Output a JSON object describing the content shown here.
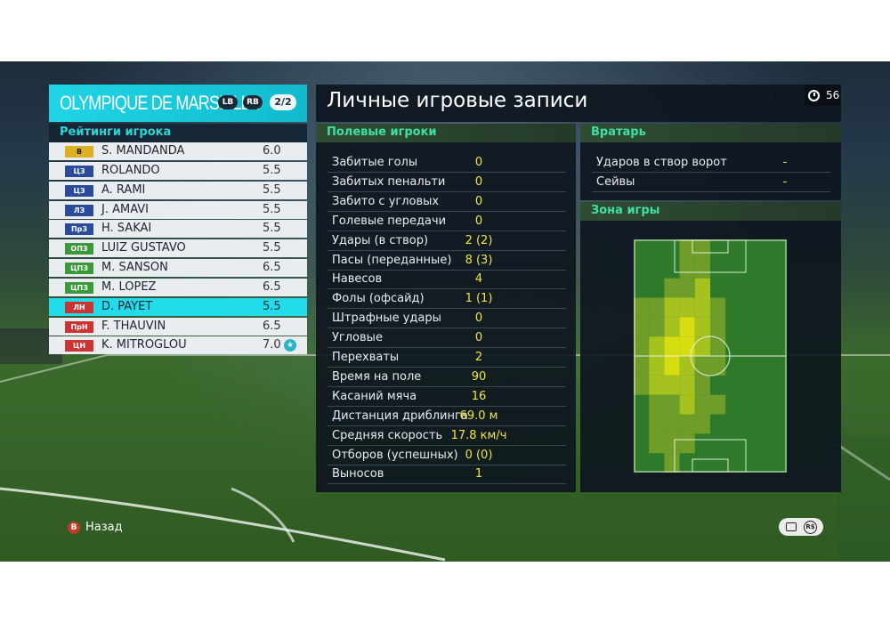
{
  "team": {
    "name": "OLYMPIQUE DE MARSEILLE",
    "lb": "LB",
    "rb": "RB",
    "page": "2/2"
  },
  "ratings_title": "Рейтинги игрока",
  "players": [
    {
      "pos": "В",
      "pos_color": "#ddb021",
      "pos_text": "#1c1c1c",
      "name": "S. MANDANDA",
      "rating": "6.0"
    },
    {
      "pos": "ЦЗ",
      "pos_color": "#2b4b9a",
      "name": "ROLANDO",
      "rating": "5.5"
    },
    {
      "pos": "ЦЗ",
      "pos_color": "#2b4b9a",
      "name": "A. RAMI",
      "rating": "5.5"
    },
    {
      "pos": "ЛЗ",
      "pos_color": "#2b4b9a",
      "name": "J. AMAVI",
      "rating": "5.5"
    },
    {
      "pos": "ПрЗ",
      "pos_color": "#2b4b9a",
      "name": "H. SAKAI",
      "rating": "5.5"
    },
    {
      "pos": "ОПЗ",
      "pos_color": "#3a9a3a",
      "name": "LUIZ GUSTAVO",
      "rating": "5.5"
    },
    {
      "pos": "ЦПЗ",
      "pos_color": "#3a9a3a",
      "name": "M. SANSON",
      "rating": "6.5"
    },
    {
      "pos": "ЦПЗ",
      "pos_color": "#3a9a3a",
      "name": "M. LOPEZ",
      "rating": "6.5"
    },
    {
      "pos": "ЛН",
      "pos_color": "#cc3333",
      "name": "D. PAYET",
      "rating": "5.5",
      "selected": true
    },
    {
      "pos": "ПрН",
      "pos_color": "#cc3333",
      "name": "F. THAUVIN",
      "rating": "6.5"
    },
    {
      "pos": "ЦН",
      "pos_color": "#cc3333",
      "name": "K. MITROGLOU",
      "rating": "7.0",
      "star": true
    }
  ],
  "screen_title": "Личные игровые записи",
  "timer": "56",
  "field_section": "Полевые игроки",
  "field_stats": [
    {
      "label": "Забитые голы",
      "value": "0"
    },
    {
      "label": "Забитых пенальти",
      "value": "0"
    },
    {
      "label": "Забито с угловых",
      "value": "0"
    },
    {
      "label": "Голевые передачи",
      "value": "0"
    },
    {
      "label": "Удары (в створ)",
      "value": "2 (2)"
    },
    {
      "label": "Пасы (переданные)",
      "value": "8 (3)"
    },
    {
      "label": "Навесов",
      "value": "4"
    },
    {
      "label": "Фолы (офсайд)",
      "value": "1 (1)"
    },
    {
      "label": "Штрафные удары",
      "value": "0"
    },
    {
      "label": "Угловые",
      "value": "0"
    },
    {
      "label": "Перехваты",
      "value": "2"
    },
    {
      "label": "Время на поле",
      "value": "90"
    },
    {
      "label": "Касаний мяча",
      "value": "16"
    },
    {
      "label": "Дистанция дриблинга",
      "value": "69.0 м"
    },
    {
      "label": "Средняя скорость",
      "value": "17.8 км/ч"
    },
    {
      "label": "Отборов (успешных)",
      "value": "0 (0)"
    },
    {
      "label": "Выносов",
      "value": "1"
    }
  ],
  "gk_section": "Вратарь",
  "gk_stats": [
    {
      "label": "Ударов в створ ворот",
      "value": "-"
    },
    {
      "label": "Сейвы",
      "value": "-"
    }
  ],
  "zone_section": "Зона игры",
  "footer": {
    "back_button": "B",
    "back_label": "Назад"
  },
  "icons": [
    "clock-icon",
    "star-icon",
    "chat-icon",
    "coin-icon",
    "b-button-icon"
  ]
}
